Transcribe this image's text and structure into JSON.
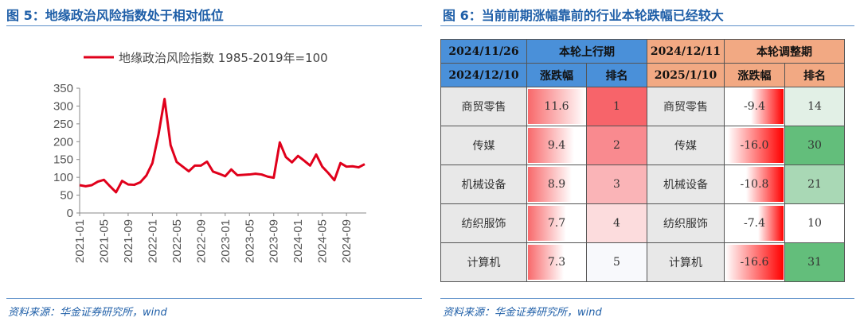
{
  "left": {
    "title": "图 5：地缘政治风险指数处于相对低位",
    "source": "资料来源：华金证券研究所，wind"
  },
  "right": {
    "title": "图 6：当前前期涨幅靠前的行业本轮跌幅已经较大",
    "source": "资料来源：华金证券研究所，wind"
  },
  "chart_data": {
    "type": "line",
    "legend": [
      "地缘政治风险指数 1985-2019年=100"
    ],
    "legend_position": "top",
    "color": "#e0001b",
    "ylim": [
      0,
      350
    ],
    "yticks": [
      "0",
      "50",
      "100",
      "150",
      "200",
      "250",
      "300",
      "350"
    ],
    "xticks": [
      "2021-01",
      "2021-05",
      "2021-09",
      "2022-01",
      "2022-05",
      "2022-09",
      "2023-01",
      "2023-05",
      "2023-09",
      "2024-01",
      "2024-05",
      "2024-09"
    ],
    "x_start": "2021-01",
    "x_end": "2024-12",
    "values": [
      78,
      75,
      78,
      88,
      93,
      75,
      58,
      90,
      80,
      79,
      86,
      105,
      140,
      220,
      320,
      190,
      143,
      130,
      117,
      133,
      133,
      144,
      116,
      110,
      103,
      122,
      106,
      107,
      108,
      110,
      108,
      102,
      99,
      198,
      157,
      142,
      160,
      147,
      133,
      164,
      130,
      112,
      92,
      140,
      130,
      131,
      128,
      137
    ]
  },
  "table": {
    "header1": [
      "2024/11/26",
      "本轮上行期",
      "2024/12/11",
      "本轮调整期"
    ],
    "header2": [
      "2024/12/10",
      "涨跌幅",
      "排名",
      "2025/1/10",
      "涨跌幅",
      "排名"
    ],
    "rows": [
      {
        "name": "商贸零售",
        "up": "11.6",
        "up_rank": "1",
        "name2": "商贸零售",
        "down": "-9.4",
        "down_rank": "14",
        "rank_color": "#f7646a",
        "rank2_color": "#e2f0e6"
      },
      {
        "name": "传媒",
        "up": "9.4",
        "up_rank": "2",
        "name2": "传媒",
        "down": "-16.0",
        "down_rank": "30",
        "rank_color": "#f98a8f",
        "rank2_color": "#63be7b"
      },
      {
        "name": "机械设备",
        "up": "8.9",
        "up_rank": "3",
        "name2": "机械设备",
        "down": "-10.8",
        "down_rank": "21",
        "rank_color": "#fab4b7",
        "rank2_color": "#a9d8b5"
      },
      {
        "name": "纺织服饰",
        "up": "7.7",
        "up_rank": "4",
        "name2": "纺织服饰",
        "down": "-7.4",
        "down_rank": "10",
        "rank_color": "#fcdcdd",
        "rank2_color": "#ffffff"
      },
      {
        "name": "计算机",
        "up": "7.3",
        "up_rank": "5",
        "name2": "计算机",
        "down": "-16.6",
        "down_rank": "31",
        "rank_color": "#f8f9fc",
        "rank2_color": "#63be7b"
      }
    ]
  }
}
